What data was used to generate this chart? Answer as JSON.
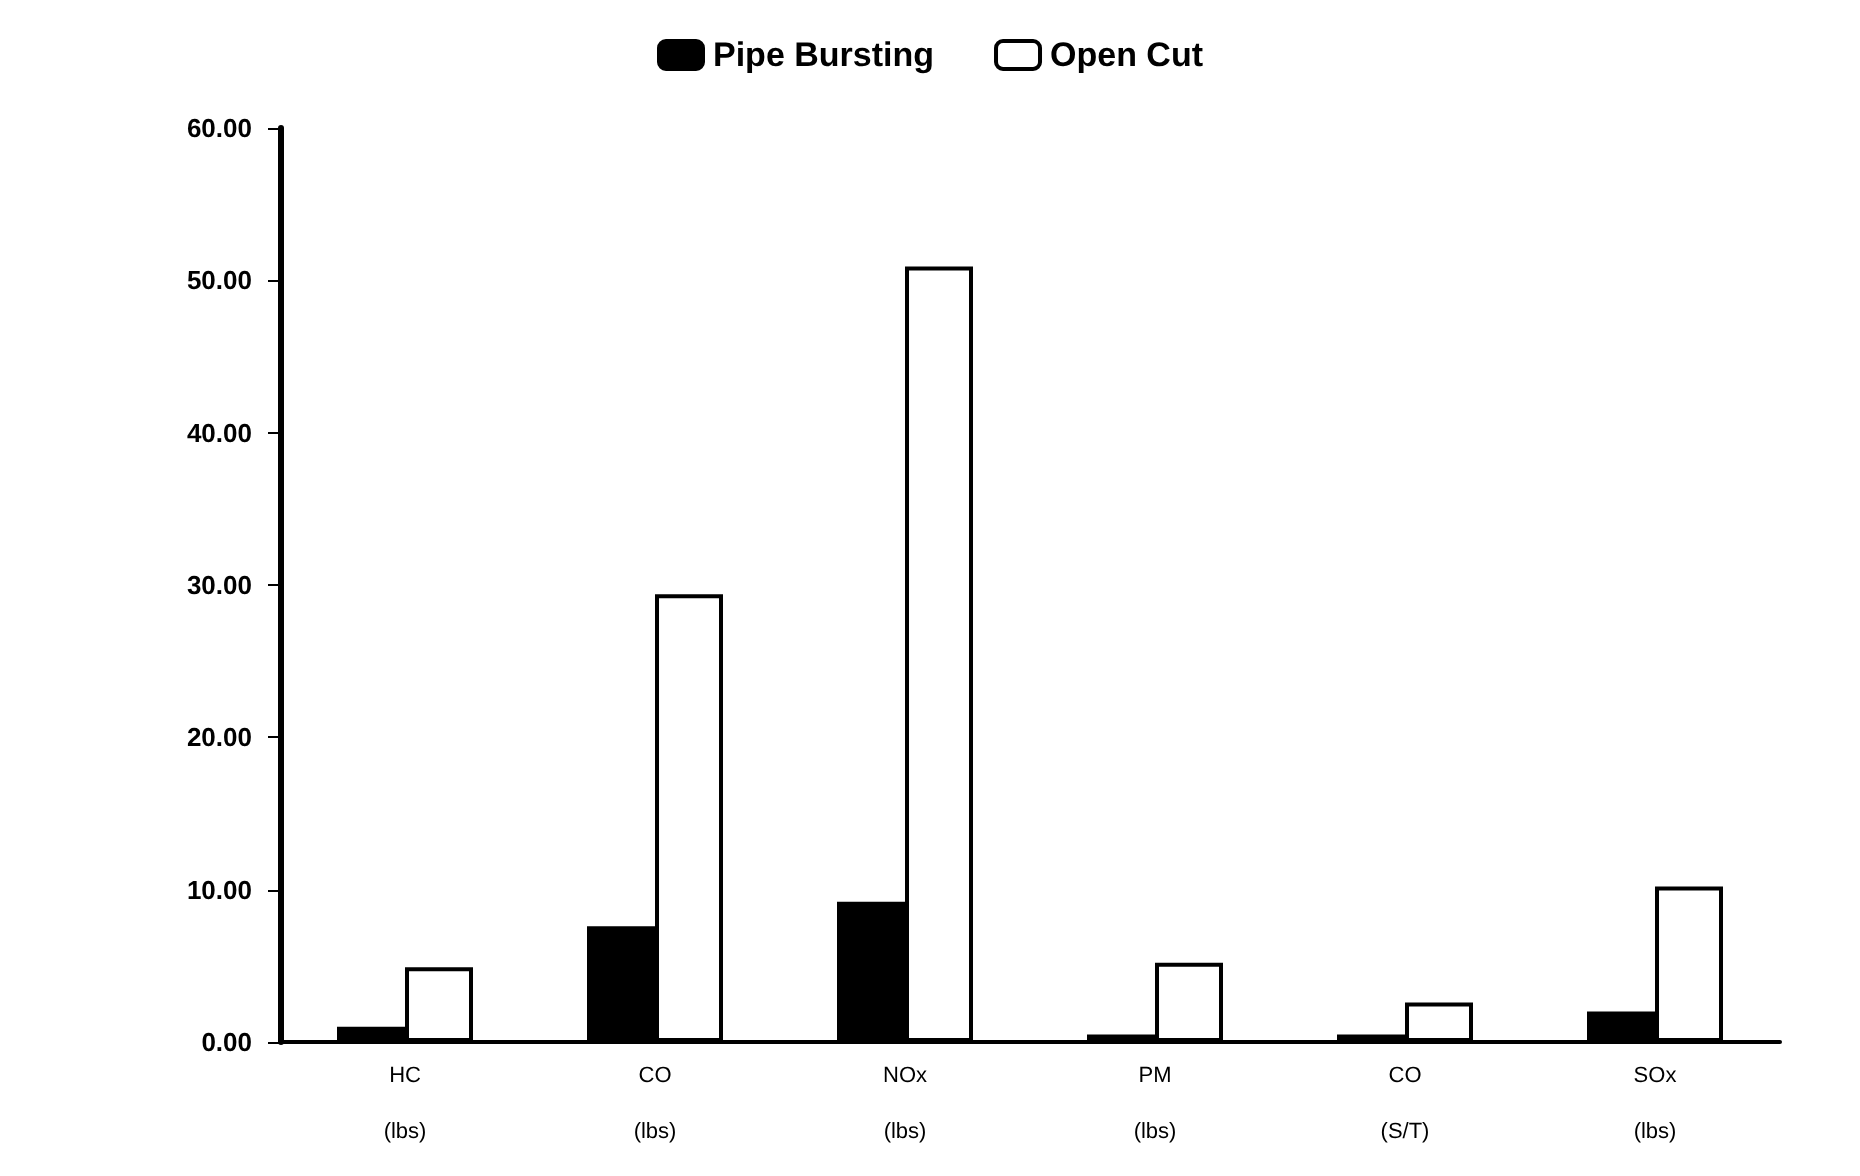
{
  "chart_data": {
    "type": "bar",
    "categories": [
      "HC\n\n(lbs)",
      "CO\n\n(lbs)",
      "NOx\n\n(lbs)",
      "PM\n\n(lbs)",
      "CO\n\n(S/T)",
      "SOx\n\n(lbs)"
    ],
    "series": [
      {
        "name": "Pipe Bursting",
        "color": "#000000",
        "values": [
          1.0,
          7.6,
          9.2,
          0.5,
          0.5,
          2.0
        ]
      },
      {
        "name": "Open Cut",
        "color": "#ffffff",
        "values": [
          4.9,
          29.4,
          50.9,
          5.2,
          2.6,
          10.2
        ]
      }
    ],
    "ylim": [
      0,
      60
    ],
    "yticks": [
      {
        "value": 0,
        "label": "0.00"
      },
      {
        "value": 10,
        "label": "10.00"
      },
      {
        "value": 20,
        "label": "20.00"
      },
      {
        "value": 30,
        "label": "30.00"
      },
      {
        "value": 40,
        "label": "40.00"
      },
      {
        "value": 50,
        "label": "50.00"
      },
      {
        "value": 60,
        "label": "60.00"
      }
    ],
    "grid": false,
    "legend": "top"
  }
}
